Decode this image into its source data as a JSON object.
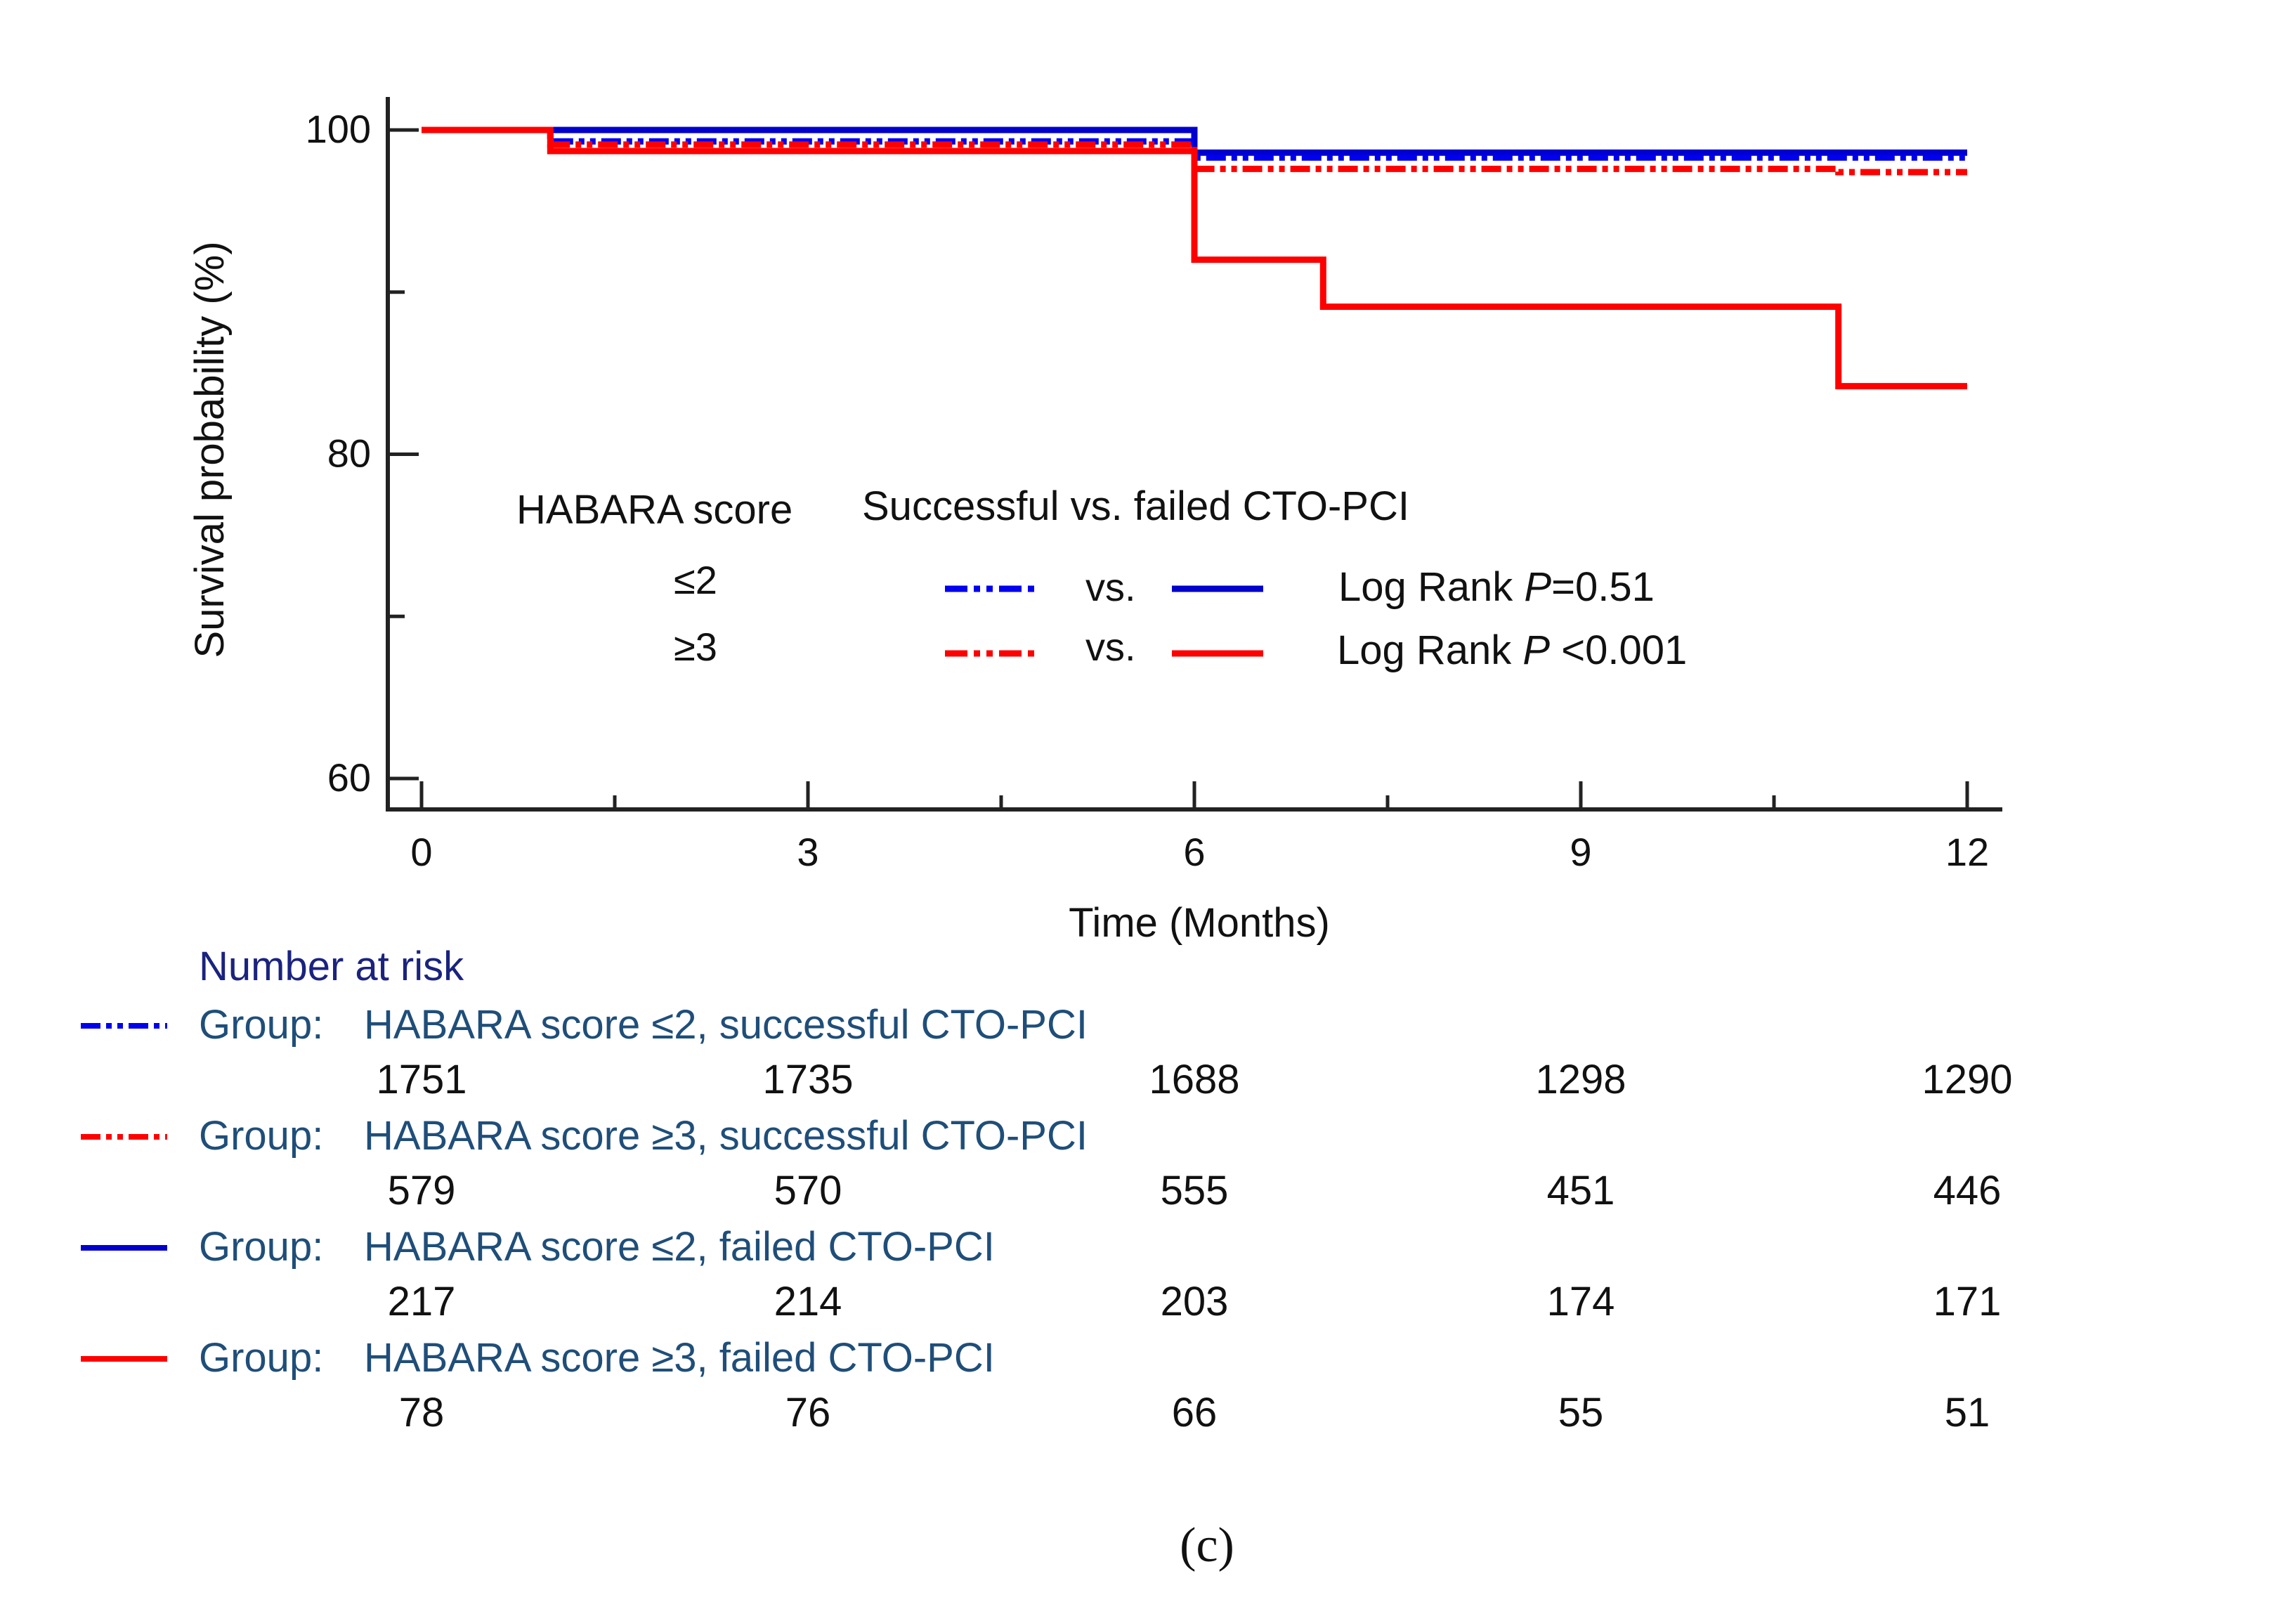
{
  "chart_data": {
    "type": "line",
    "subtype": "kaplan-meier-step",
    "xlabel": "Time (Months)",
    "ylabel": "Survival probability (%)",
    "xlim": [
      0,
      12
    ],
    "ylim": [
      58,
      102
    ],
    "x_ticks": [
      0,
      3,
      6,
      9,
      12
    ],
    "y_ticks": [
      60,
      80,
      100
    ],
    "series": [
      {
        "name": "HABARA score ≤2, successful CTO-PCI",
        "color": "#0000ee",
        "dash": "dash-dot-dot",
        "points": [
          [
            0,
            100
          ],
          [
            1,
            100
          ],
          [
            1,
            99.3
          ],
          [
            6,
            99.3
          ],
          [
            6,
            98.3
          ],
          [
            12,
            98.3
          ]
        ]
      },
      {
        "name": "HABARA score ≥3, successful CTO-PCI",
        "color": "#ff0000",
        "dash": "dash-dot-dot",
        "points": [
          [
            0,
            100
          ],
          [
            1,
            100
          ],
          [
            1,
            99.1
          ],
          [
            6,
            99.1
          ],
          [
            6,
            97.6
          ],
          [
            11,
            97.6
          ],
          [
            11,
            97.4
          ],
          [
            12,
            97.4
          ]
        ]
      },
      {
        "name": "HABARA score ≤2, failed CTO-PCI",
        "color": "#0000cc",
        "dash": "solid",
        "points": [
          [
            0,
            100
          ],
          [
            6,
            100
          ],
          [
            6,
            98.6
          ],
          [
            12,
            98.6
          ]
        ]
      },
      {
        "name": "HABARA score ≥3, failed CTO-PCI",
        "color": "#ff0000",
        "dash": "solid",
        "points": [
          [
            0,
            100
          ],
          [
            1,
            100
          ],
          [
            1,
            98.7
          ],
          [
            6,
            98.7
          ],
          [
            6,
            92
          ],
          [
            7,
            92
          ],
          [
            7,
            89.1
          ],
          [
            11,
            89.1
          ],
          [
            11,
            84.2
          ],
          [
            12,
            84.2
          ]
        ]
      }
    ]
  },
  "legend": {
    "habara_header": "HABARA score",
    "comparison_header": "Successful vs. failed CTO-PCI",
    "rows": [
      {
        "score": "≤2",
        "vs": "vs.",
        "stat_prefix": "Log Rank ",
        "p_symbol": "P",
        "p_value": "=0.51",
        "dashed_color": "#0000ee",
        "solid_color": "#0000cc"
      },
      {
        "score": "≥3",
        "vs": "vs.",
        "stat_prefix": "Log Rank ",
        "p_symbol": "P",
        "p_value": " <0.001",
        "dashed_color": "#ff0000",
        "solid_color": "#ff0000"
      }
    ]
  },
  "risk_table": {
    "title": "Number at risk",
    "group_prefix": "Group:",
    "groups": [
      {
        "label": "HABARA score ≤2, successful CTO-PCI",
        "color": "#0000ee",
        "dash": "dash-dot-dot",
        "counts": [
          "1751",
          "1735",
          "1688",
          "1298",
          "1290"
        ]
      },
      {
        "label": "HABARA score ≥3, successful CTO-PCI",
        "color": "#ff0000",
        "dash": "dash-dot-dot",
        "counts": [
          "579",
          "570",
          "555",
          "451",
          "446"
        ]
      },
      {
        "label": "HABARA score ≤2, failed CTO-PCI",
        "color": "#0000cc",
        "dash": "solid",
        "counts": [
          "217",
          "214",
          "203",
          "174",
          "171"
        ]
      },
      {
        "label": "HABARA score ≥3, failed CTO-PCI",
        "color": "#ff0000",
        "dash": "solid",
        "counts": [
          "78",
          "76",
          "66",
          "55",
          "51"
        ]
      }
    ]
  },
  "panel_label": "(c)",
  "colors": {
    "axis": "#222222",
    "text": "#111111",
    "risk_title": "#1a237e",
    "group_label": "#1f4e79"
  }
}
